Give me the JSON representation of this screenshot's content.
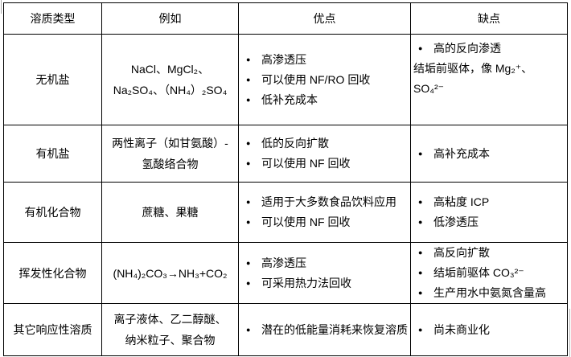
{
  "colors": {
    "background": "#ffffff",
    "border": "#000000",
    "text": "#000000"
  },
  "icons": {
    "bullet": "●"
  },
  "table": {
    "columns": [
      "溶质类型",
      "例如",
      "优点",
      "缺点"
    ],
    "rows": [
      {
        "type": "无机盐",
        "examples": [
          "NaCl、MgCl₂、",
          "Na₂SO₄、（NH₄）₂SO₄"
        ],
        "pros": [
          {
            "bullet": true,
            "text": "高渗透压"
          },
          {
            "bullet": true,
            "text": "可以使用 NF/RO 回收"
          },
          {
            "bullet": true,
            "text": "低补充成本"
          }
        ],
        "cons": [
          {
            "bullet": true,
            "text": "高的反向渗透"
          },
          {
            "bullet": false,
            "text": "结垢前驱体，像 Mg₂⁺、"
          },
          {
            "bullet": false,
            "text": "SO₄²⁻"
          }
        ]
      },
      {
        "type": "有机盐",
        "examples": [
          "两性离子（如甘氨酸）-",
          "氢酸络合物"
        ],
        "pros": [
          {
            "bullet": true,
            "text": "低的反向扩散"
          },
          {
            "bullet": true,
            "text": "可以使用 NF 回收"
          }
        ],
        "cons": [
          {
            "bullet": true,
            "text": "高补充成本"
          }
        ]
      },
      {
        "type": "有机化合物",
        "examples": [
          "蔗糖、果糖"
        ],
        "pros": [
          {
            "bullet": true,
            "text": "适用于大多数食品饮料应用"
          },
          {
            "bullet": true,
            "text": "可以使用 NF 回收"
          }
        ],
        "cons": [
          {
            "bullet": true,
            "text": "高粘度 ICP"
          },
          {
            "bullet": true,
            "text": "低渗透压"
          }
        ]
      },
      {
        "type": "挥发性化合物",
        "examples": [
          "(NH₄)₂CO₃→NH₃+CO₂"
        ],
        "pros": [
          {
            "bullet": true,
            "text": "高渗透压"
          },
          {
            "bullet": true,
            "text": "可采用热力法回收"
          }
        ],
        "cons": [
          {
            "bullet": true,
            "text": "高反向扩散"
          },
          {
            "bullet": true,
            "text": "结垢前驱体 CO₃²⁻"
          },
          {
            "bullet": true,
            "text": "生产用水中氨氮含量高"
          }
        ]
      },
      {
        "type": "其它响应性溶质",
        "examples": [
          "离子液体、乙二醇醚、",
          "纳米粒子、聚合物"
        ],
        "pros": [
          {
            "bullet": true,
            "text": "潜在的低能量消耗来恢复溶质"
          }
        ],
        "cons": [
          {
            "bullet": true,
            "text": "尚未商业化"
          }
        ]
      }
    ]
  }
}
